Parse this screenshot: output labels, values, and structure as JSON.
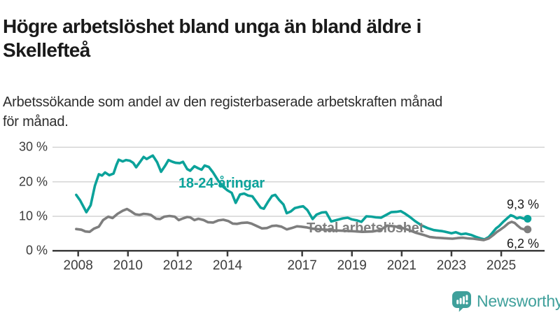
{
  "header": {
    "title_line1": "Högre arbetslöshet bland unga än bland äldre i",
    "title_line2": "Skellefteå",
    "subtitle_line1": "Arbetssökande som andel av den registerbaserade arbetskraften månad",
    "subtitle_line2": "för månad."
  },
  "chart_data": {
    "type": "line",
    "title": "Högre arbetslöshet bland unga än bland äldre i Skellefteå",
    "subtitle": "Arbetssökande som andel av den registerbaserade arbetskraften månad för månad.",
    "xlabel": "",
    "ylabel": "",
    "grid": true,
    "x_range_years": [
      2008,
      2026
    ],
    "ylim": [
      0,
      30
    ],
    "y_axis": {
      "ticks": [
        0,
        10,
        20,
        30
      ],
      "tick_labels": [
        "0 %",
        "10 %",
        "20 %",
        "30 %"
      ]
    },
    "x_axis": {
      "ticks": [
        2008,
        2010,
        2012,
        2014,
        2017,
        2019,
        2021,
        2023,
        2025
      ],
      "tick_labels": [
        "2008",
        "2010",
        "2012",
        "2014",
        "2017",
        "2019",
        "2021",
        "2023",
        "2025"
      ]
    },
    "axis_color": "#3c3c3c",
    "grid_color": "#d4d4d4",
    "series": [
      {
        "name": "18-24-åringar",
        "color": "#0ba29a",
        "end_label": "9,3 %",
        "end_value": 9.3,
        "points": [
          [
            2007.92,
            16.2
          ],
          [
            2008.08,
            14.6
          ],
          [
            2008.33,
            11.2
          ],
          [
            2008.5,
            13.2
          ],
          [
            2008.67,
            18.8
          ],
          [
            2008.83,
            22.2
          ],
          [
            2008.96,
            21.8
          ],
          [
            2009.08,
            22.7
          ],
          [
            2009.25,
            21.9
          ],
          [
            2009.42,
            22.4
          ],
          [
            2009.54,
            24.9
          ],
          [
            2009.63,
            26.4
          ],
          [
            2009.79,
            25.9
          ],
          [
            2009.92,
            26.3
          ],
          [
            2010.08,
            26.1
          ],
          [
            2010.21,
            25.5
          ],
          [
            2010.33,
            24.2
          ],
          [
            2010.46,
            25.5
          ],
          [
            2010.63,
            27.2
          ],
          [
            2010.75,
            26.6
          ],
          [
            2010.92,
            27.3
          ],
          [
            2011.0,
            27.6
          ],
          [
            2011.17,
            25.7
          ],
          [
            2011.33,
            22.9
          ],
          [
            2011.5,
            24.7
          ],
          [
            2011.63,
            26.3
          ],
          [
            2011.79,
            25.8
          ],
          [
            2011.92,
            25.5
          ],
          [
            2012.08,
            25.4
          ],
          [
            2012.21,
            25.8
          ],
          [
            2012.38,
            23.7
          ],
          [
            2012.5,
            23.2
          ],
          [
            2012.67,
            24.5
          ],
          [
            2012.83,
            23.9
          ],
          [
            2012.96,
            23.5
          ],
          [
            2013.08,
            24.7
          ],
          [
            2013.25,
            24.3
          ],
          [
            2013.42,
            22.7
          ],
          [
            2013.63,
            20.3
          ],
          [
            2013.83,
            18.5
          ],
          [
            2014.0,
            17.5
          ],
          [
            2014.17,
            16.8
          ],
          [
            2014.33,
            13.9
          ],
          [
            2014.5,
            16.3
          ],
          [
            2014.67,
            16.6
          ],
          [
            2014.83,
            16.0
          ],
          [
            2015.0,
            15.8
          ],
          [
            2015.17,
            14.1
          ],
          [
            2015.33,
            12.5
          ],
          [
            2015.46,
            12.2
          ],
          [
            2015.63,
            14.2
          ],
          [
            2015.79,
            15.9
          ],
          [
            2015.92,
            16.2
          ],
          [
            2016.08,
            14.7
          ],
          [
            2016.25,
            13.4
          ],
          [
            2016.38,
            10.9
          ],
          [
            2016.54,
            11.4
          ],
          [
            2016.71,
            12.4
          ],
          [
            2016.88,
            12.7
          ],
          [
            2017.04,
            12.9
          ],
          [
            2017.21,
            11.8
          ],
          [
            2017.42,
            9.2
          ],
          [
            2017.58,
            10.5
          ],
          [
            2017.79,
            11.1
          ],
          [
            2017.96,
            11.2
          ],
          [
            2018.17,
            8.5
          ],
          [
            2018.38,
            8.9
          ],
          [
            2018.63,
            9.4
          ],
          [
            2018.83,
            9.6
          ],
          [
            2019.0,
            9.1
          ],
          [
            2019.21,
            8.8
          ],
          [
            2019.38,
            8.4
          ],
          [
            2019.58,
            10.0
          ],
          [
            2019.79,
            9.9
          ],
          [
            2019.96,
            9.7
          ],
          [
            2020.17,
            9.6
          ],
          [
            2020.38,
            10.4
          ],
          [
            2020.58,
            11.2
          ],
          [
            2020.79,
            11.3
          ],
          [
            2020.96,
            11.5
          ],
          [
            2021.13,
            10.8
          ],
          [
            2021.33,
            9.8
          ],
          [
            2021.54,
            8.6
          ],
          [
            2021.79,
            7.4
          ],
          [
            2022.04,
            6.6
          ],
          [
            2022.29,
            6.0
          ],
          [
            2022.5,
            5.8
          ],
          [
            2022.63,
            5.7
          ],
          [
            2022.83,
            5.4
          ],
          [
            2023.0,
            5.1
          ],
          [
            2023.17,
            5.4
          ],
          [
            2023.38,
            4.8
          ],
          [
            2023.58,
            5.0
          ],
          [
            2023.79,
            4.6
          ],
          [
            2023.96,
            4.1
          ],
          [
            2024.17,
            3.6
          ],
          [
            2024.33,
            3.3
          ],
          [
            2024.5,
            4.0
          ],
          [
            2024.63,
            5.1
          ],
          [
            2024.79,
            6.5
          ],
          [
            2024.92,
            7.2
          ],
          [
            2025.08,
            8.4
          ],
          [
            2025.25,
            9.5
          ],
          [
            2025.38,
            10.3
          ],
          [
            2025.5,
            10.0
          ],
          [
            2025.63,
            9.4
          ],
          [
            2025.75,
            9.7
          ],
          [
            2025.92,
            9.3
          ]
        ]
      },
      {
        "name": "Total arbetslöshet",
        "color": "#7e7e7e",
        "end_label": "6,2 %",
        "end_value": 6.2,
        "points": [
          [
            2007.92,
            6.3
          ],
          [
            2008.13,
            6.1
          ],
          [
            2008.29,
            5.6
          ],
          [
            2008.46,
            5.5
          ],
          [
            2008.63,
            6.4
          ],
          [
            2008.83,
            7.0
          ],
          [
            2009.0,
            8.9
          ],
          [
            2009.21,
            9.9
          ],
          [
            2009.38,
            9.5
          ],
          [
            2009.58,
            10.7
          ],
          [
            2009.79,
            11.6
          ],
          [
            2009.96,
            12.1
          ],
          [
            2010.13,
            11.4
          ],
          [
            2010.29,
            10.6
          ],
          [
            2010.46,
            10.4
          ],
          [
            2010.63,
            10.7
          ],
          [
            2010.79,
            10.6
          ],
          [
            2010.92,
            10.4
          ],
          [
            2011.13,
            9.3
          ],
          [
            2011.29,
            9.2
          ],
          [
            2011.46,
            9.9
          ],
          [
            2011.67,
            10.1
          ],
          [
            2011.88,
            9.9
          ],
          [
            2012.04,
            8.9
          ],
          [
            2012.21,
            9.4
          ],
          [
            2012.38,
            9.8
          ],
          [
            2012.5,
            9.7
          ],
          [
            2012.67,
            8.9
          ],
          [
            2012.83,
            9.3
          ],
          [
            2013.04,
            8.9
          ],
          [
            2013.21,
            8.3
          ],
          [
            2013.42,
            8.2
          ],
          [
            2013.63,
            8.8
          ],
          [
            2013.83,
            9.0
          ],
          [
            2014.04,
            8.6
          ],
          [
            2014.21,
            7.9
          ],
          [
            2014.38,
            7.8
          ],
          [
            2014.58,
            8.1
          ],
          [
            2014.79,
            8.2
          ],
          [
            2014.96,
            7.9
          ],
          [
            2015.17,
            7.2
          ],
          [
            2015.38,
            6.5
          ],
          [
            2015.58,
            6.6
          ],
          [
            2015.79,
            7.2
          ],
          [
            2015.96,
            7.3
          ],
          [
            2016.17,
            7.0
          ],
          [
            2016.38,
            6.2
          ],
          [
            2016.58,
            6.6
          ],
          [
            2016.79,
            7.1
          ],
          [
            2016.96,
            7.0
          ],
          [
            2017.17,
            6.8
          ],
          [
            2017.42,
            6.4
          ],
          [
            2017.71,
            6.2
          ],
          [
            2018.0,
            6.1
          ],
          [
            2018.33,
            5.9
          ],
          [
            2018.67,
            5.8
          ],
          [
            2019.0,
            5.7
          ],
          [
            2019.42,
            5.5
          ],
          [
            2019.83,
            5.6
          ],
          [
            2020.13,
            6.0
          ],
          [
            2020.42,
            7.3
          ],
          [
            2020.71,
            7.1
          ],
          [
            2021.0,
            6.7
          ],
          [
            2021.29,
            6.0
          ],
          [
            2021.58,
            5.2
          ],
          [
            2021.88,
            4.6
          ],
          [
            2022.13,
            4.0
          ],
          [
            2022.38,
            3.8
          ],
          [
            2022.63,
            3.7
          ],
          [
            2022.83,
            3.6
          ],
          [
            2023.04,
            3.5
          ],
          [
            2023.25,
            3.7
          ],
          [
            2023.46,
            3.8
          ],
          [
            2023.67,
            3.6
          ],
          [
            2023.88,
            3.5
          ],
          [
            2024.08,
            3.3
          ],
          [
            2024.29,
            3.1
          ],
          [
            2024.5,
            3.6
          ],
          [
            2024.67,
            4.5
          ],
          [
            2024.83,
            5.5
          ],
          [
            2024.96,
            6.1
          ],
          [
            2025.13,
            7.0
          ],
          [
            2025.29,
            8.0
          ],
          [
            2025.42,
            8.4
          ],
          [
            2025.54,
            8.1
          ],
          [
            2025.67,
            7.2
          ],
          [
            2025.79,
            6.5
          ],
          [
            2025.92,
            6.2
          ]
        ]
      }
    ],
    "legend_position": "inline-labels"
  },
  "footer": {
    "brand": "Newsworthy",
    "brand_color": "#3fa09b"
  }
}
